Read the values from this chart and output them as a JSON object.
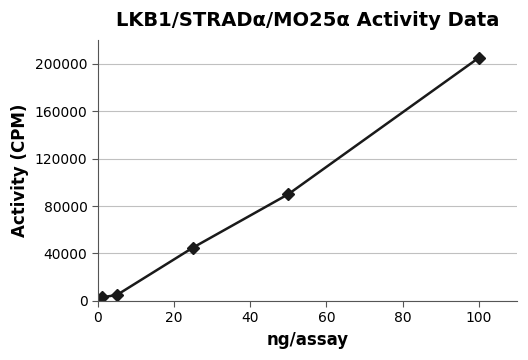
{
  "title": "LKB1/STRADα/MO25α Activity Data",
  "xlabel": "ng/assay",
  "ylabel": "Activity (CPM)",
  "x_data": [
    1,
    5,
    25,
    50,
    100
  ],
  "y_data": [
    3000,
    5000,
    45000,
    90000,
    205000
  ],
  "xlim": [
    0,
    110
  ],
  "ylim": [
    0,
    220000
  ],
  "xticks": [
    0,
    20,
    40,
    60,
    80,
    100
  ],
  "yticks": [
    0,
    40000,
    80000,
    120000,
    160000,
    200000
  ],
  "line_color": "#1a1a1a",
  "marker": "D",
  "marker_size": 6,
  "marker_facecolor": "#1a1a1a",
  "line_width": 1.8,
  "grid_color": "#c0c0c0",
  "background_color": "#ffffff",
  "title_fontsize": 14,
  "axis_label_fontsize": 12,
  "tick_fontsize": 10
}
